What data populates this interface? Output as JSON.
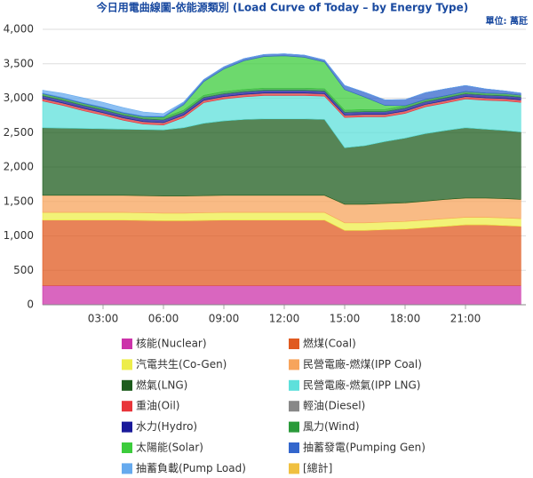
{
  "chart_data": {
    "type": "stacked-area",
    "title": "今日用電曲線圖-依能源類別 (Load Curve of Today – by Energy Type)",
    "unit_label": "單位: 萬瓩",
    "x": [
      0,
      1,
      2,
      3,
      4,
      5,
      6,
      7,
      8,
      9,
      10,
      11,
      12,
      13,
      14,
      15,
      16,
      17,
      18,
      19,
      20,
      21,
      22,
      23,
      23.75
    ],
    "xlim": [
      0,
      24
    ],
    "xticks": [
      {
        "value": 3,
        "label": "03:00"
      },
      {
        "value": 6,
        "label": "06:00"
      },
      {
        "value": 9,
        "label": "09:00"
      },
      {
        "value": 12,
        "label": "12:00"
      },
      {
        "value": 15,
        "label": "15:00"
      },
      {
        "value": 18,
        "label": "18:00"
      },
      {
        "value": 21,
        "label": "21:00"
      }
    ],
    "ylim": [
      0,
      4000
    ],
    "yticks": [
      0,
      500,
      {
        "value": 1000,
        "label": "1,000"
      },
      {
        "value": 1500,
        "label": "1,500"
      },
      {
        "value": 2000,
        "label": "2,000"
      },
      {
        "value": 2500,
        "label": "2,500"
      },
      {
        "value": 3000,
        "label": "3,000"
      },
      {
        "value": 3500,
        "label": "3,500"
      },
      {
        "value": 4000,
        "label": "4,000"
      }
    ],
    "grid": true,
    "series": [
      {
        "name": "核能(Nuclear)",
        "color": "#cc33aa",
        "values": [
          280,
          280,
          280,
          280,
          280,
          280,
          280,
          280,
          280,
          280,
          280,
          280,
          280,
          280,
          280,
          280,
          280,
          280,
          280,
          280,
          280,
          280,
          280,
          280,
          280
        ]
      },
      {
        "name": "燃煤(Coal)",
        "color": "#e05a20",
        "values": [
          950,
          950,
          950,
          950,
          950,
          945,
          940,
          940,
          945,
          950,
          950,
          950,
          950,
          950,
          950,
          800,
          800,
          810,
          820,
          840,
          860,
          880,
          880,
          870,
          860
        ]
      },
      {
        "name": "汽電共生(Co-Gen)",
        "color": "#eded4a",
        "values": [
          110,
          110,
          110,
          110,
          110,
          110,
          110,
          110,
          110,
          110,
          110,
          110,
          110,
          110,
          110,
          110,
          110,
          110,
          110,
          110,
          110,
          110,
          110,
          110,
          110
        ]
      },
      {
        "name": "民營電廠-燃煤(IPP Coal)",
        "color": "#f7a45c",
        "values": [
          250,
          250,
          250,
          250,
          250,
          250,
          250,
          250,
          250,
          250,
          250,
          250,
          250,
          250,
          250,
          270,
          270,
          270,
          270,
          275,
          280,
          280,
          280,
          280,
          280
        ]
      },
      {
        "name": "燃氣(LNG)",
        "color": "#1d5c1d",
        "values": [
          980,
          975,
          970,
          965,
          960,
          960,
          960,
          990,
          1050,
          1080,
          1100,
          1110,
          1110,
          1110,
          1100,
          820,
          850,
          900,
          940,
          980,
          1000,
          1020,
          1000,
          990,
          980
        ]
      },
      {
        "name": "民營電廠-燃氣(IPP LNG)",
        "color": "#5ee0db",
        "values": [
          390,
          330,
          260,
          200,
          130,
          80,
          70,
          150,
          300,
          320,
          330,
          340,
          340,
          340,
          340,
          440,
          420,
          360,
          360,
          390,
          400,
          420,
          420,
          430,
          430
        ]
      },
      {
        "name": "重油(Oil)",
        "color": "#e8353a",
        "values": [
          30,
          30,
          30,
          30,
          30,
          30,
          30,
          30,
          30,
          30,
          30,
          30,
          30,
          30,
          30,
          30,
          30,
          30,
          30,
          30,
          30,
          30,
          30,
          30,
          30
        ]
      },
      {
        "name": "輕油(Diesel)",
        "color": "#888888",
        "values": [
          5,
          5,
          5,
          5,
          5,
          5,
          5,
          5,
          5,
          5,
          5,
          5,
          5,
          5,
          5,
          5,
          5,
          5,
          5,
          5,
          5,
          5,
          5,
          5,
          5
        ]
      },
      {
        "name": "水力(Hydro)",
        "color": "#1a1a9a",
        "values": [
          40,
          40,
          40,
          40,
          40,
          40,
          40,
          40,
          40,
          40,
          40,
          40,
          40,
          40,
          40,
          40,
          40,
          40,
          40,
          40,
          40,
          40,
          40,
          40,
          40
        ]
      },
      {
        "name": "風力(Wind)",
        "color": "#2a9a3a",
        "values": [
          30,
          30,
          30,
          30,
          30,
          30,
          30,
          30,
          30,
          30,
          30,
          30,
          30,
          30,
          30,
          30,
          30,
          30,
          30,
          30,
          30,
          30,
          30,
          30,
          30
        ]
      },
      {
        "name": "太陽能(Solar)",
        "color": "#3ccc3c",
        "values": [
          0,
          0,
          0,
          0,
          0,
          0,
          10,
          80,
          200,
          330,
          420,
          460,
          470,
          450,
          390,
          300,
          180,
          60,
          5,
          0,
          0,
          0,
          0,
          0,
          0
        ]
      },
      {
        "name": "抽蓄發電(Pumping Gen)",
        "color": "#3366cc",
        "values": [
          10,
          10,
          10,
          10,
          10,
          10,
          10,
          30,
          30,
          30,
          30,
          30,
          30,
          30,
          30,
          60,
          70,
          80,
          90,
          100,
          100,
          90,
          60,
          40,
          30
        ]
      },
      {
        "name": "抽蓄負載(Pump Load)",
        "color": "#66aaee",
        "values": [
          40,
          60,
          70,
          70,
          70,
          60,
          40,
          10,
          0,
          0,
          0,
          0,
          0,
          0,
          0,
          0,
          0,
          0,
          0,
          0,
          0,
          0,
          0,
          0,
          0
        ]
      },
      {
        "name": "[總計]",
        "color": "#f0c040",
        "values": [
          null,
          null,
          null,
          null,
          null,
          null,
          null,
          null,
          null,
          null,
          null,
          null,
          null,
          null,
          null,
          null,
          null,
          null,
          null,
          null,
          null,
          null,
          null,
          null,
          null
        ]
      }
    ]
  }
}
